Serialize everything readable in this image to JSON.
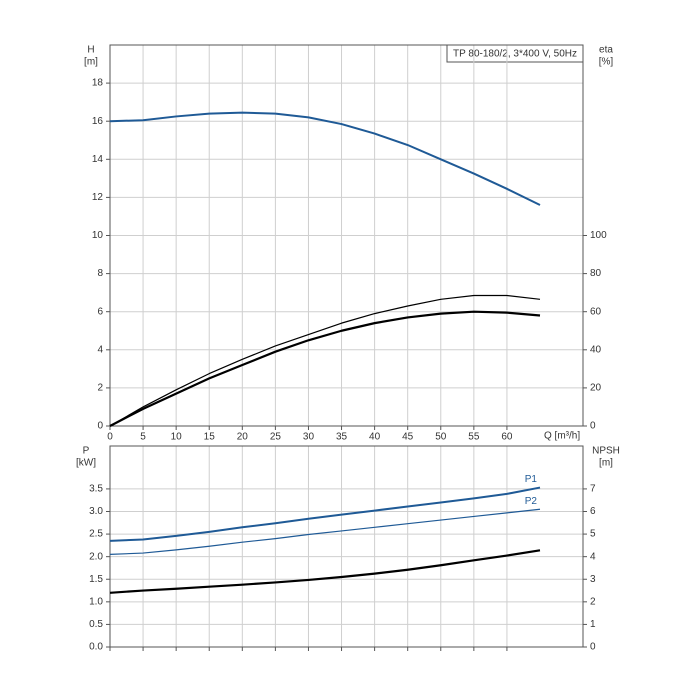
{
  "chart_data": [
    {
      "type": "line",
      "title": "TP 80-180/2, 3*400 V, 50Hz",
      "ylabel": "H",
      "yunit": "[m]",
      "y2label": "eta",
      "y2unit": "[%]",
      "xlabel": "Q [m³/h]",
      "x": [
        0,
        5,
        10,
        15,
        20,
        25,
        30,
        35,
        40,
        45,
        50,
        55,
        60,
        65
      ],
      "xlim": [
        0,
        71.5
      ],
      "xticks": [
        0,
        5,
        10,
        15,
        20,
        25,
        30,
        35,
        40,
        45,
        50,
        55,
        60
      ],
      "ylim": [
        0,
        20
      ],
      "yticks": [
        0,
        2,
        4,
        6,
        8,
        10,
        12,
        14,
        16,
        18
      ],
      "y2lim": [
        0,
        200
      ],
      "y2ticks": [
        0,
        20,
        40,
        60,
        80,
        100
      ],
      "grid": true,
      "series": [
        {
          "color": "#1f5a96",
          "line_width": 2,
          "values": [
            16,
            16.05,
            16.25,
            16.4,
            16.45,
            16.4,
            16.2,
            15.85,
            15.35,
            14.75,
            14.0,
            13.25,
            12.45,
            11.6
          ]
        },
        {
          "color": "#000000",
          "line_width": 1.2,
          "axis": "y2",
          "values": [
            0,
            10,
            19,
            27.5,
            35,
            42,
            48,
            54,
            59,
            63,
            66.5,
            68.5,
            68.5,
            66.5
          ]
        },
        {
          "color": "#000000",
          "line_width": 2.2,
          "axis": "y2",
          "values": [
            0,
            9,
            17,
            25,
            32,
            39,
            45,
            50,
            54,
            57,
            59,
            60,
            59.5,
            58
          ]
        }
      ]
    },
    {
      "type": "line",
      "ylabel": "P",
      "yunit": "[kW]",
      "y2label": "NPSH",
      "y2unit": "[m]",
      "x": [
        0,
        5,
        10,
        15,
        20,
        25,
        30,
        35,
        40,
        45,
        50,
        55,
        60,
        65
      ],
      "xlim": [
        0,
        71.5
      ],
      "ylim": [
        0,
        4.45
      ],
      "yticks": [
        {
          "value": 0,
          "label": "0.0"
        },
        {
          "value": 0.5,
          "label": "0.5"
        },
        {
          "value": 1,
          "label": "1.0"
        },
        {
          "value": 1.5,
          "label": "1.5"
        },
        {
          "value": 2,
          "label": "2.0"
        },
        {
          "value": 2.5,
          "label": "2.5"
        },
        {
          "value": 3,
          "label": "3.0"
        },
        {
          "value": 3.5,
          "label": "3.5"
        }
      ],
      "y2lim": [
        0,
        8.9
      ],
      "y2ticks": [
        0,
        1,
        2,
        3,
        4,
        5,
        6,
        7
      ],
      "grid": true,
      "series": [
        {
          "name": "P1",
          "color": "#1f5a96",
          "line_width": 2,
          "values": [
            2.35,
            2.38,
            2.46,
            2.55,
            2.65,
            2.74,
            2.84,
            2.93,
            3.02,
            3.11,
            3.2,
            3.29,
            3.39,
            3.53
          ]
        },
        {
          "name": "P2",
          "color": "#1f5a96",
          "line_width": 1.2,
          "values": [
            2.05,
            2.08,
            2.15,
            2.23,
            2.32,
            2.4,
            2.49,
            2.57,
            2.65,
            2.73,
            2.81,
            2.89,
            2.97,
            3.05
          ]
        },
        {
          "color": "#000000",
          "line_width": 2.2,
          "axis": "y2",
          "values": [
            2.4,
            2.5,
            2.58,
            2.67,
            2.76,
            2.86,
            2.97,
            3.1,
            3.25,
            3.42,
            3.62,
            3.84,
            4.05,
            4.28
          ]
        }
      ]
    }
  ]
}
